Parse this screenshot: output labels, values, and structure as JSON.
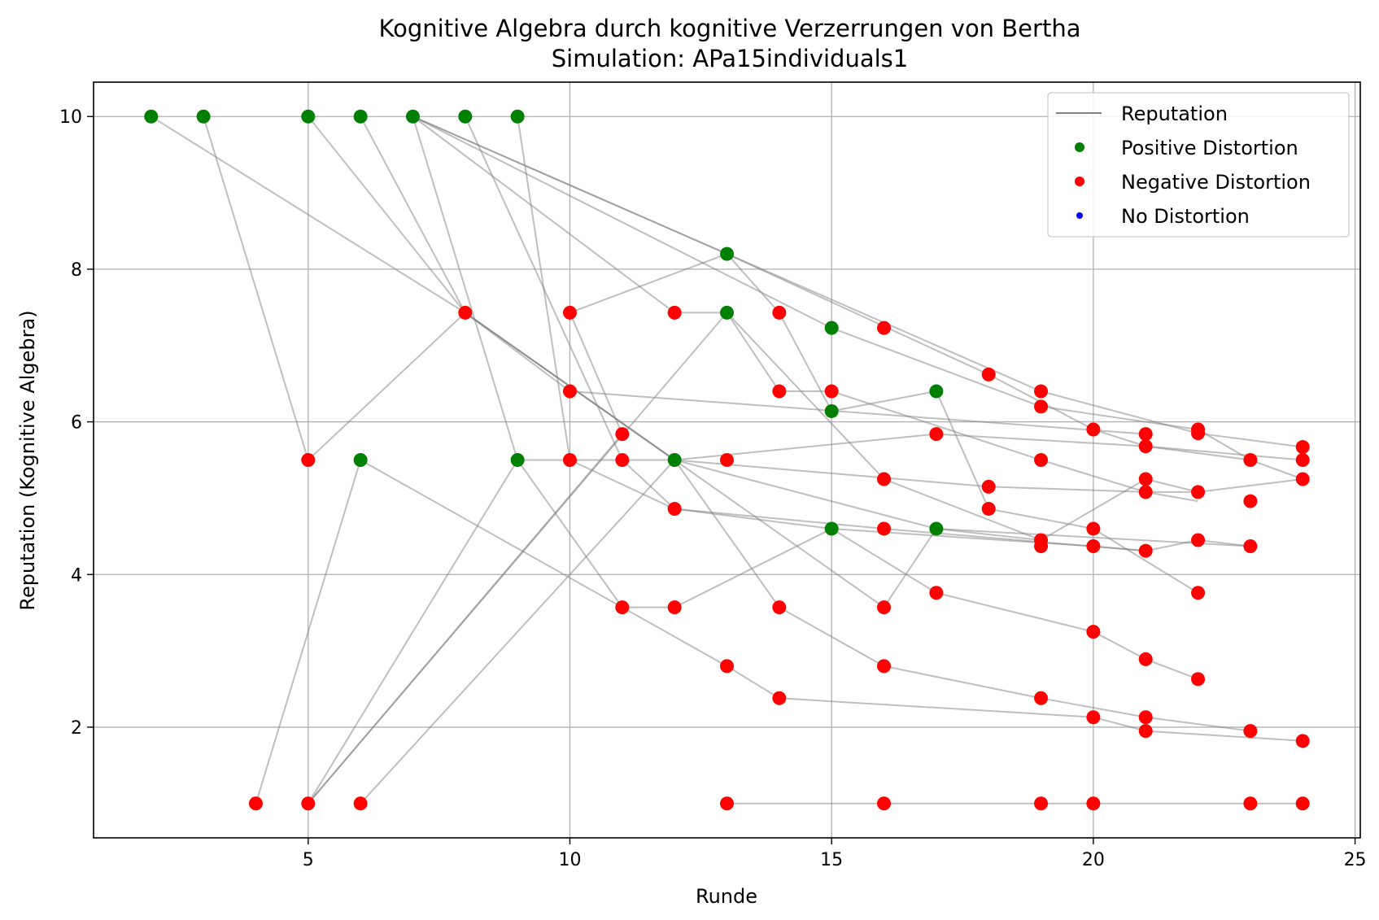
{
  "chart_data": {
    "type": "scatter",
    "title": "Kognitive Algebra durch kognitive Verzerrungen von Bertha",
    "subtitle": "Simulation: APa15individuals1",
    "xlabel": "Runde",
    "ylabel": "Reputation (Kognitive Algebra)",
    "xlim": [
      0.9,
      25.1
    ],
    "ylim": [
      0.55,
      10.45
    ],
    "xticks": [
      5,
      10,
      15,
      20,
      25
    ],
    "yticks": [
      2,
      4,
      6,
      8,
      10
    ],
    "grid": true,
    "legend_position": "top-right",
    "legend": [
      "Reputation",
      "Positive Distortion",
      "Negative Distortion",
      "No Distortion"
    ],
    "colors": {
      "positive": "#008000",
      "negative": "#ff0000",
      "none": "#0000ff",
      "line": "#808080",
      "grid": "#b0b0b0"
    },
    "reputation_lines": [
      [
        [
          2,
          10
        ],
        [
          8,
          7.43
        ],
        [
          12,
          5.5
        ],
        [
          16,
          3.57
        ],
        [
          17,
          4.6
        ],
        [
          23,
          4.37
        ]
      ],
      [
        [
          3,
          10
        ],
        [
          5,
          5.5
        ],
        [
          8,
          7.43
        ],
        [
          10,
          6.4
        ],
        [
          21,
          5.84
        ]
      ],
      [
        [
          5,
          10
        ],
        [
          8,
          7.43
        ],
        [
          12,
          5.5
        ],
        [
          14,
          3.57
        ],
        [
          16,
          2.8
        ],
        [
          19,
          2.38
        ],
        [
          21,
          2.13
        ],
        [
          23,
          1.95
        ]
      ],
      [
        [
          6,
          10
        ],
        [
          8,
          7.43
        ],
        [
          12,
          5.5
        ],
        [
          17,
          4.6
        ],
        [
          19,
          4.45
        ]
      ],
      [
        [
          7,
          10
        ],
        [
          9,
          5.5
        ],
        [
          11,
          3.57
        ],
        [
          13,
          2.8
        ],
        [
          14,
          2.38
        ],
        [
          20,
          2.13
        ],
        [
          21,
          1.95
        ],
        [
          24,
          1.82
        ]
      ],
      [
        [
          7,
          10
        ],
        [
          12,
          7.43
        ],
        [
          13,
          7.43
        ],
        [
          14,
          6.4
        ],
        [
          15,
          6.4
        ],
        [
          19,
          5.5
        ],
        [
          21,
          5.08
        ],
        [
          22,
          4.96
        ]
      ],
      [
        [
          7,
          10
        ],
        [
          13,
          8.2
        ],
        [
          18,
          6.62
        ],
        [
          20,
          5.9
        ],
        [
          21,
          5.68
        ],
        [
          23,
          5.5
        ]
      ],
      [
        [
          7,
          10
        ],
        [
          19,
          6.4
        ],
        [
          22,
          5.85
        ],
        [
          24,
          5.67
        ]
      ],
      [
        [
          7,
          10
        ],
        [
          15,
          7.23
        ],
        [
          19,
          6.2
        ],
        [
          22,
          5.9
        ],
        [
          23,
          5.5
        ],
        [
          24,
          5.25
        ]
      ],
      [
        [
          8,
          10
        ],
        [
          11,
          5.5
        ],
        [
          12,
          4.86
        ],
        [
          15,
          4.6
        ],
        [
          20,
          4.37
        ],
        [
          21,
          4.31
        ]
      ],
      [
        [
          9,
          10
        ],
        [
          10,
          5.5
        ],
        [
          12,
          4.86
        ],
        [
          16,
          4.6
        ],
        [
          21,
          4.31
        ],
        [
          22,
          4.45
        ],
        [
          23,
          4.37
        ]
      ],
      [
        [
          4,
          1
        ],
        [
          6,
          5.5
        ],
        [
          11,
          3.57
        ],
        [
          12,
          3.57
        ],
        [
          15,
          4.6
        ],
        [
          17,
          3.76
        ],
        [
          20,
          3.25
        ],
        [
          21,
          2.89
        ],
        [
          22,
          2.63
        ]
      ],
      [
        [
          5,
          1
        ],
        [
          9,
          5.5
        ],
        [
          12,
          5.5
        ],
        [
          18,
          5.15
        ],
        [
          21,
          5.08
        ],
        [
          22,
          5.08
        ],
        [
          24,
          5.25
        ]
      ],
      [
        [
          5,
          1
        ],
        [
          11,
          5.84
        ],
        [
          10,
          7.43
        ],
        [
          13,
          8.2
        ],
        [
          14,
          7.43
        ],
        [
          15,
          6.14
        ],
        [
          17,
          6.4
        ],
        [
          18,
          4.86
        ],
        [
          20,
          4.6
        ],
        [
          22,
          3.76
        ]
      ],
      [
        [
          5,
          1
        ],
        [
          13,
          7.43
        ],
        [
          16,
          5.25
        ],
        [
          19,
          4.45
        ],
        [
          21,
          5.25
        ],
        [
          22,
          5.08
        ]
      ],
      [
        [
          6,
          1
        ],
        [
          12,
          5.5
        ],
        [
          17,
          5.84
        ],
        [
          21,
          5.68
        ],
        [
          24,
          5.5
        ]
      ],
      [
        [
          13,
          1
        ],
        [
          16,
          1
        ],
        [
          19,
          1
        ],
        [
          20,
          1
        ],
        [
          23,
          1
        ],
        [
          24,
          1
        ]
      ]
    ],
    "points": [
      {
        "x": 2,
        "y": 10,
        "d": "positive"
      },
      {
        "x": 3,
        "y": 10,
        "d": "positive"
      },
      {
        "x": 5,
        "y": 10,
        "d": "positive"
      },
      {
        "x": 6,
        "y": 10,
        "d": "positive"
      },
      {
        "x": 7,
        "y": 10,
        "d": "positive"
      },
      {
        "x": 8,
        "y": 10,
        "d": "positive"
      },
      {
        "x": 9,
        "y": 10,
        "d": "positive"
      },
      {
        "x": 4,
        "y": 1,
        "d": "negative"
      },
      {
        "x": 5,
        "y": 1,
        "d": "negative"
      },
      {
        "x": 6,
        "y": 1,
        "d": "negative"
      },
      {
        "x": 5,
        "y": 5.5,
        "d": "negative"
      },
      {
        "x": 6,
        "y": 5.5,
        "d": "positive"
      },
      {
        "x": 8,
        "y": 7.43,
        "d": "negative"
      },
      {
        "x": 9,
        "y": 5.5,
        "d": "positive"
      },
      {
        "x": 10,
        "y": 7.43,
        "d": "negative"
      },
      {
        "x": 10,
        "y": 6.4,
        "d": "negative"
      },
      {
        "x": 10,
        "y": 5.5,
        "d": "negative"
      },
      {
        "x": 11,
        "y": 5.84,
        "d": "negative"
      },
      {
        "x": 11,
        "y": 5.5,
        "d": "negative"
      },
      {
        "x": 11,
        "y": 3.57,
        "d": "negative"
      },
      {
        "x": 12,
        "y": 7.43,
        "d": "negative"
      },
      {
        "x": 12,
        "y": 5.5,
        "d": "positive"
      },
      {
        "x": 12,
        "y": 4.86,
        "d": "negative"
      },
      {
        "x": 12,
        "y": 3.57,
        "d": "negative"
      },
      {
        "x": 13,
        "y": 8.2,
        "d": "positive"
      },
      {
        "x": 13,
        "y": 7.43,
        "d": "positive"
      },
      {
        "x": 13,
        "y": 5.5,
        "d": "negative"
      },
      {
        "x": 13,
        "y": 2.8,
        "d": "negative"
      },
      {
        "x": 13,
        "y": 1,
        "d": "negative"
      },
      {
        "x": 14,
        "y": 7.43,
        "d": "negative"
      },
      {
        "x": 14,
        "y": 6.4,
        "d": "negative"
      },
      {
        "x": 14,
        "y": 3.57,
        "d": "negative"
      },
      {
        "x": 14,
        "y": 2.38,
        "d": "negative"
      },
      {
        "x": 15,
        "y": 7.23,
        "d": "positive"
      },
      {
        "x": 15,
        "y": 6.4,
        "d": "negative"
      },
      {
        "x": 15,
        "y": 6.14,
        "d": "positive"
      },
      {
        "x": 15,
        "y": 4.6,
        "d": "positive"
      },
      {
        "x": 16,
        "y": 7.23,
        "d": "negative"
      },
      {
        "x": 16,
        "y": 5.25,
        "d": "negative"
      },
      {
        "x": 16,
        "y": 4.6,
        "d": "negative"
      },
      {
        "x": 16,
        "y": 3.57,
        "d": "negative"
      },
      {
        "x": 16,
        "y": 2.8,
        "d": "negative"
      },
      {
        "x": 16,
        "y": 1,
        "d": "negative"
      },
      {
        "x": 17,
        "y": 6.4,
        "d": "positive"
      },
      {
        "x": 17,
        "y": 5.84,
        "d": "negative"
      },
      {
        "x": 17,
        "y": 4.6,
        "d": "positive"
      },
      {
        "x": 17,
        "y": 3.76,
        "d": "negative"
      },
      {
        "x": 18,
        "y": 6.62,
        "d": "negative"
      },
      {
        "x": 18,
        "y": 5.15,
        "d": "negative"
      },
      {
        "x": 18,
        "y": 4.86,
        "d": "negative"
      },
      {
        "x": 19,
        "y": 6.4,
        "d": "negative"
      },
      {
        "x": 19,
        "y": 6.2,
        "d": "negative"
      },
      {
        "x": 19,
        "y": 5.5,
        "d": "negative"
      },
      {
        "x": 19,
        "y": 4.45,
        "d": "negative"
      },
      {
        "x": 19,
        "y": 4.37,
        "d": "negative"
      },
      {
        "x": 19,
        "y": 2.38,
        "d": "negative"
      },
      {
        "x": 19,
        "y": 1,
        "d": "negative"
      },
      {
        "x": 20,
        "y": 5.9,
        "d": "negative"
      },
      {
        "x": 20,
        "y": 4.6,
        "d": "negative"
      },
      {
        "x": 20,
        "y": 4.37,
        "d": "negative"
      },
      {
        "x": 20,
        "y": 3.25,
        "d": "negative"
      },
      {
        "x": 20,
        "y": 2.13,
        "d": "negative"
      },
      {
        "x": 20,
        "y": 1,
        "d": "negative"
      },
      {
        "x": 21,
        "y": 5.84,
        "d": "negative"
      },
      {
        "x": 21,
        "y": 5.68,
        "d": "negative"
      },
      {
        "x": 21,
        "y": 5.25,
        "d": "negative"
      },
      {
        "x": 21,
        "y": 5.08,
        "d": "negative"
      },
      {
        "x": 21,
        "y": 4.31,
        "d": "negative"
      },
      {
        "x": 21,
        "y": 2.89,
        "d": "negative"
      },
      {
        "x": 21,
        "y": 2.13,
        "d": "negative"
      },
      {
        "x": 21,
        "y": 1.95,
        "d": "negative"
      },
      {
        "x": 22,
        "y": 5.9,
        "d": "negative"
      },
      {
        "x": 22,
        "y": 5.85,
        "d": "negative"
      },
      {
        "x": 22,
        "y": 5.08,
        "d": "negative"
      },
      {
        "x": 22,
        "y": 4.45,
        "d": "negative"
      },
      {
        "x": 22,
        "y": 3.76,
        "d": "negative"
      },
      {
        "x": 22,
        "y": 2.63,
        "d": "negative"
      },
      {
        "x": 23,
        "y": 5.5,
        "d": "negative"
      },
      {
        "x": 23,
        "y": 4.96,
        "d": "negative"
      },
      {
        "x": 23,
        "y": 4.37,
        "d": "negative"
      },
      {
        "x": 23,
        "y": 1.95,
        "d": "negative"
      },
      {
        "x": 23,
        "y": 1,
        "d": "negative"
      },
      {
        "x": 24,
        "y": 5.67,
        "d": "negative"
      },
      {
        "x": 24,
        "y": 5.5,
        "d": "negative"
      },
      {
        "x": 24,
        "y": 5.25,
        "d": "negative"
      },
      {
        "x": 24,
        "y": 1.82,
        "d": "negative"
      },
      {
        "x": 24,
        "y": 1,
        "d": "negative"
      }
    ]
  }
}
